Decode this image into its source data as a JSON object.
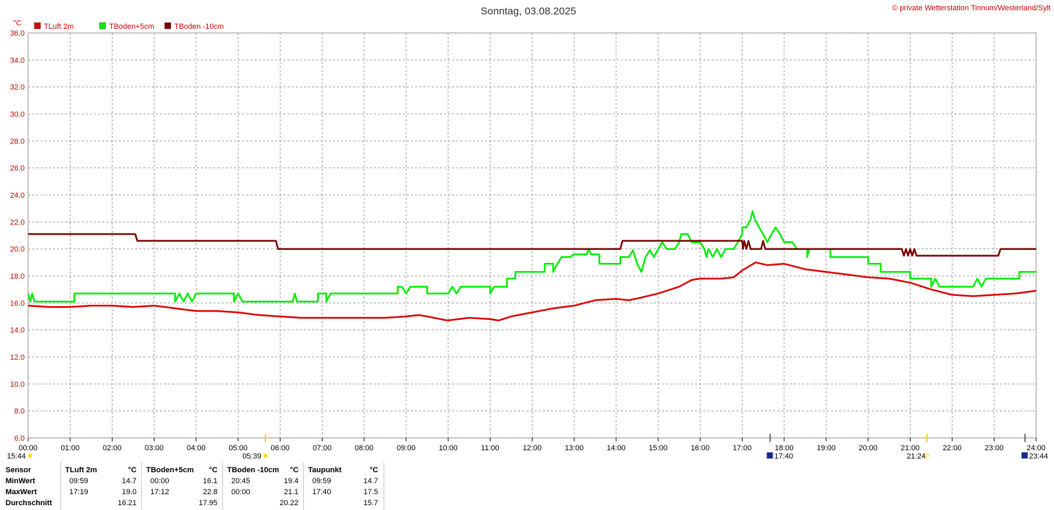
{
  "title": "Sonntag, 03.08.2025",
  "copyright": "© private Wetterstation Tinnum/Westerland/Sylt",
  "y_unit": "°C",
  "legend": [
    {
      "label": "TLuft 2m",
      "color": "#dd0000"
    },
    {
      "label": "TBoden+5cm",
      "color": "#00ee00"
    },
    {
      "label": "TBoden -10cm",
      "color": "#7a0000"
    }
  ],
  "sun_markers": {
    "sunrise_prev": "15:44",
    "sunrise": "05:39",
    "moon_1": "17:40",
    "sunset": "21:24",
    "moon_2": "23:44"
  },
  "chart_data": {
    "type": "line",
    "title": "Sonntag, 03.08.2025",
    "ylabel": "°C",
    "ylim": [
      6.0,
      36.0
    ],
    "xlim": [
      0,
      24
    ],
    "grid": true,
    "legend_position": "top-left",
    "y_ticks": [
      "6.0",
      "8.0",
      "10.0",
      "12.0",
      "14.0",
      "16.0",
      "18.0",
      "20.0",
      "22.0",
      "24.0",
      "26.0",
      "28.0",
      "30.0",
      "32.0",
      "34.0",
      "36.0"
    ],
    "x_ticks": [
      "00:00",
      "01:00",
      "02:00",
      "03:00",
      "04:00",
      "05:00",
      "06:00",
      "07:00",
      "08:00",
      "09:00",
      "10:00",
      "11:00",
      "12:00",
      "13:00",
      "14:00",
      "15:00",
      "16:00",
      "17:00",
      "18:00",
      "19:00",
      "20:00",
      "21:00",
      "22:00",
      "23:00",
      "24:00"
    ],
    "series": [
      {
        "name": "TLuft 2m",
        "color": "#dd0000",
        "points": [
          [
            0,
            15.8
          ],
          [
            0.5,
            15.7
          ],
          [
            1.0,
            15.7
          ],
          [
            1.5,
            15.8
          ],
          [
            2.0,
            15.8
          ],
          [
            2.5,
            15.7
          ],
          [
            3.0,
            15.8
          ],
          [
            3.5,
            15.6
          ],
          [
            4.0,
            15.4
          ],
          [
            4.5,
            15.4
          ],
          [
            5.0,
            15.3
          ],
          [
            5.5,
            15.1
          ],
          [
            6.0,
            15.0
          ],
          [
            6.5,
            14.9
          ],
          [
            7.0,
            14.9
          ],
          [
            7.5,
            14.9
          ],
          [
            8.0,
            14.9
          ],
          [
            8.5,
            14.9
          ],
          [
            9.0,
            15.0
          ],
          [
            9.3,
            15.1
          ],
          [
            9.5,
            15.0
          ],
          [
            9.98,
            14.7
          ],
          [
            10.5,
            14.9
          ],
          [
            11.0,
            14.8
          ],
          [
            11.2,
            14.7
          ],
          [
            11.5,
            15.0
          ],
          [
            12.0,
            15.3
          ],
          [
            12.5,
            15.6
          ],
          [
            13.0,
            15.8
          ],
          [
            13.5,
            16.2
          ],
          [
            14.0,
            16.3
          ],
          [
            14.3,
            16.2
          ],
          [
            14.6,
            16.4
          ],
          [
            15.0,
            16.7
          ],
          [
            15.5,
            17.2
          ],
          [
            15.8,
            17.7
          ],
          [
            16.0,
            17.8
          ],
          [
            16.5,
            17.8
          ],
          [
            16.8,
            17.9
          ],
          [
            17.0,
            18.4
          ],
          [
            17.32,
            19.0
          ],
          [
            17.6,
            18.8
          ],
          [
            18.0,
            18.9
          ],
          [
            18.5,
            18.5
          ],
          [
            19.0,
            18.3
          ],
          [
            19.5,
            18.1
          ],
          [
            20.0,
            17.9
          ],
          [
            20.5,
            17.8
          ],
          [
            21.0,
            17.5
          ],
          [
            21.5,
            17.0
          ],
          [
            22.0,
            16.6
          ],
          [
            22.5,
            16.5
          ],
          [
            23.0,
            16.6
          ],
          [
            23.5,
            16.7
          ],
          [
            24.0,
            16.9
          ]
        ]
      },
      {
        "name": "TBoden+5cm",
        "color": "#00ee00",
        "points": [
          [
            0,
            16.7
          ],
          [
            0.05,
            16.1
          ],
          [
            0.1,
            16.7
          ],
          [
            0.15,
            16.1
          ],
          [
            1.1,
            16.1
          ],
          [
            1.1,
            16.7
          ],
          [
            3.5,
            16.7
          ],
          [
            3.5,
            16.1
          ],
          [
            3.6,
            16.7
          ],
          [
            3.7,
            16.1
          ],
          [
            3.8,
            16.7
          ],
          [
            3.9,
            16.1
          ],
          [
            4.0,
            16.7
          ],
          [
            4.9,
            16.7
          ],
          [
            4.9,
            16.1
          ],
          [
            5.0,
            16.7
          ],
          [
            5.1,
            16.1
          ],
          [
            6.3,
            16.1
          ],
          [
            6.35,
            16.7
          ],
          [
            6.4,
            16.1
          ],
          [
            6.9,
            16.1
          ],
          [
            6.9,
            16.7
          ],
          [
            7.1,
            16.7
          ],
          [
            7.1,
            16.1
          ],
          [
            7.2,
            16.7
          ],
          [
            8.8,
            16.7
          ],
          [
            8.8,
            17.2
          ],
          [
            8.9,
            17.2
          ],
          [
            9.0,
            16.7
          ],
          [
            9.1,
            17.2
          ],
          [
            9.5,
            17.2
          ],
          [
            9.5,
            16.7
          ],
          [
            10.0,
            16.7
          ],
          [
            10.1,
            17.2
          ],
          [
            10.2,
            16.7
          ],
          [
            10.3,
            17.2
          ],
          [
            11.0,
            17.2
          ],
          [
            11.0,
            16.7
          ],
          [
            11.1,
            17.2
          ],
          [
            11.4,
            17.2
          ],
          [
            11.4,
            17.8
          ],
          [
            11.6,
            17.8
          ],
          [
            11.6,
            18.3
          ],
          [
            12.3,
            18.3
          ],
          [
            12.3,
            18.9
          ],
          [
            12.5,
            18.9
          ],
          [
            12.5,
            18.3
          ],
          [
            12.6,
            18.9
          ],
          [
            12.7,
            19.4
          ],
          [
            12.9,
            19.4
          ],
          [
            13.0,
            19.6
          ],
          [
            13.3,
            19.6
          ],
          [
            13.35,
            20.0
          ],
          [
            13.4,
            19.6
          ],
          [
            13.6,
            19.6
          ],
          [
            13.6,
            18.9
          ],
          [
            14.1,
            18.9
          ],
          [
            14.1,
            19.4
          ],
          [
            14.3,
            19.4
          ],
          [
            14.4,
            19.9
          ],
          [
            14.5,
            18.9
          ],
          [
            14.6,
            18.3
          ],
          [
            14.7,
            19.4
          ],
          [
            14.8,
            19.9
          ],
          [
            14.9,
            19.4
          ],
          [
            15.0,
            20.0
          ],
          [
            15.1,
            20.5
          ],
          [
            15.2,
            20.0
          ],
          [
            15.4,
            20.0
          ],
          [
            15.5,
            20.5
          ],
          [
            15.55,
            21.1
          ],
          [
            15.7,
            21.1
          ],
          [
            15.8,
            20.5
          ],
          [
            16.0,
            20.5
          ],
          [
            16.1,
            20.0
          ],
          [
            16.15,
            19.4
          ],
          [
            16.2,
            20.0
          ],
          [
            16.3,
            19.4
          ],
          [
            16.4,
            20.0
          ],
          [
            16.5,
            19.4
          ],
          [
            16.6,
            20.0
          ],
          [
            16.8,
            20.0
          ],
          [
            16.9,
            20.5
          ],
          [
            17.0,
            21.1
          ],
          [
            17.0,
            21.6
          ],
          [
            17.1,
            21.6
          ],
          [
            17.2,
            22.2
          ],
          [
            17.25,
            22.8
          ],
          [
            17.3,
            22.2
          ],
          [
            17.4,
            21.6
          ],
          [
            17.5,
            21.1
          ],
          [
            17.6,
            20.5
          ],
          [
            17.7,
            21.1
          ],
          [
            17.8,
            21.6
          ],
          [
            17.9,
            21.1
          ],
          [
            18.0,
            20.5
          ],
          [
            18.2,
            20.5
          ],
          [
            18.3,
            20.0
          ],
          [
            18.55,
            20.0
          ],
          [
            18.55,
            19.4
          ],
          [
            18.6,
            20.0
          ],
          [
            19.1,
            20.0
          ],
          [
            19.1,
            19.4
          ],
          [
            20.0,
            19.4
          ],
          [
            20.0,
            18.9
          ],
          [
            20.3,
            18.9
          ],
          [
            20.3,
            18.3
          ],
          [
            21.0,
            18.3
          ],
          [
            21.0,
            17.8
          ],
          [
            21.5,
            17.8
          ],
          [
            21.5,
            17.2
          ],
          [
            21.6,
            17.8
          ],
          [
            21.7,
            17.2
          ],
          [
            22.5,
            17.2
          ],
          [
            22.6,
            17.8
          ],
          [
            22.7,
            17.2
          ],
          [
            22.8,
            17.8
          ],
          [
            23.6,
            17.8
          ],
          [
            23.6,
            18.3
          ],
          [
            24.0,
            18.3
          ]
        ]
      },
      {
        "name": "TBoden -10cm",
        "color": "#7a0000",
        "points": [
          [
            0,
            21.1
          ],
          [
            2.55,
            21.1
          ],
          [
            2.6,
            20.6
          ],
          [
            5.9,
            20.6
          ],
          [
            5.95,
            20.0
          ],
          [
            14.1,
            20.0
          ],
          [
            14.15,
            20.6
          ],
          [
            17.0,
            20.6
          ],
          [
            17.02,
            20.0
          ],
          [
            17.05,
            20.6
          ],
          [
            17.1,
            20.0
          ],
          [
            17.15,
            20.6
          ],
          [
            17.2,
            20.0
          ],
          [
            17.45,
            20.0
          ],
          [
            17.5,
            20.6
          ],
          [
            17.55,
            20.0
          ],
          [
            20.8,
            20.0
          ],
          [
            20.85,
            19.5
          ],
          [
            20.9,
            20.0
          ],
          [
            20.95,
            19.5
          ],
          [
            21.0,
            20.0
          ],
          [
            21.05,
            19.5
          ],
          [
            21.1,
            20.0
          ],
          [
            21.15,
            19.5
          ],
          [
            23.1,
            19.5
          ],
          [
            23.15,
            20.0
          ],
          [
            24.0,
            20.0
          ]
        ]
      },
      {
        "name": "Taupunkt",
        "color": "#0000cc",
        "points": []
      }
    ]
  },
  "stats": {
    "header": {
      "sensor": "Sensor",
      "unit": "°C"
    },
    "rows": [
      "MinWert",
      "MaxWert",
      "Durchschnitt"
    ],
    "columns": [
      {
        "name": "TLuft 2m",
        "min_time": "09:59",
        "min_val": "14.7",
        "max_time": "17:19",
        "max_val": "19.0",
        "avg": "16.21"
      },
      {
        "name": "TBoden+5cm",
        "min_time": "00:00",
        "min_val": "16.1",
        "max_time": "17:12",
        "max_val": "22.8",
        "avg": "17.95"
      },
      {
        "name": "TBoden -10cm",
        "min_time": "20:45",
        "min_val": "19.4",
        "max_time": "00:00",
        "max_val": "21.1",
        "avg": "20.22"
      },
      {
        "name": "Taupunkt",
        "min_time": "09:59",
        "min_val": "14.7",
        "max_time": "17:40",
        "max_val": "17.5",
        "avg": "15.7"
      }
    ]
  }
}
